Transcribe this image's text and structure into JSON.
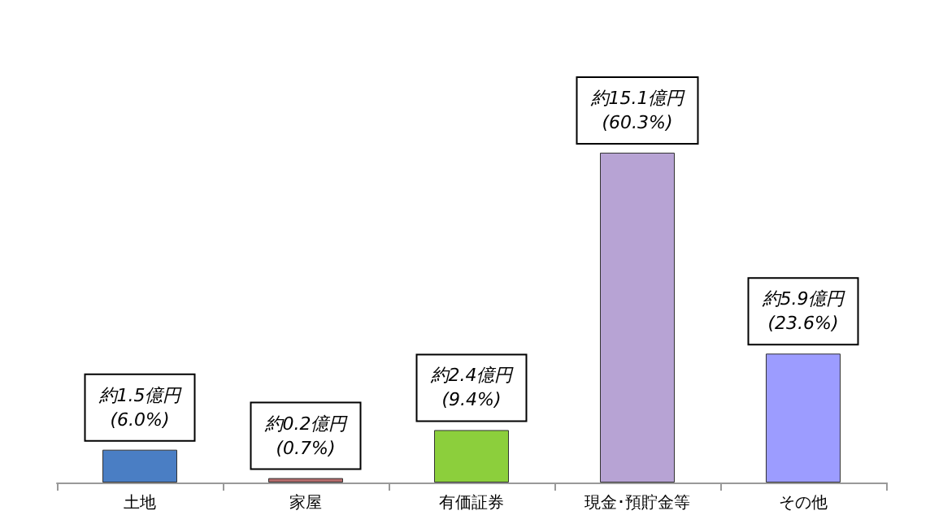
{
  "chart_data": {
    "type": "bar",
    "categories": [
      "土地",
      "家屋",
      "有価証券",
      "現金･預貯金等",
      "その他"
    ],
    "values": [
      1.5,
      0.2,
      2.4,
      15.1,
      5.9
    ],
    "colors": [
      "#4a7ec4",
      "#b36b6b",
      "#8ccf3c",
      "#b7a3d4",
      "#9c9cff"
    ],
    "value_labels": [
      "約1.5億円\n(6.0%)",
      "約0.2億円\n(0.7%)",
      "約2.4億円\n(9.4%)",
      "約15.1億円\n(60.3%)",
      "約5.9億円\n(23.6%)"
    ],
    "grid": false
  }
}
